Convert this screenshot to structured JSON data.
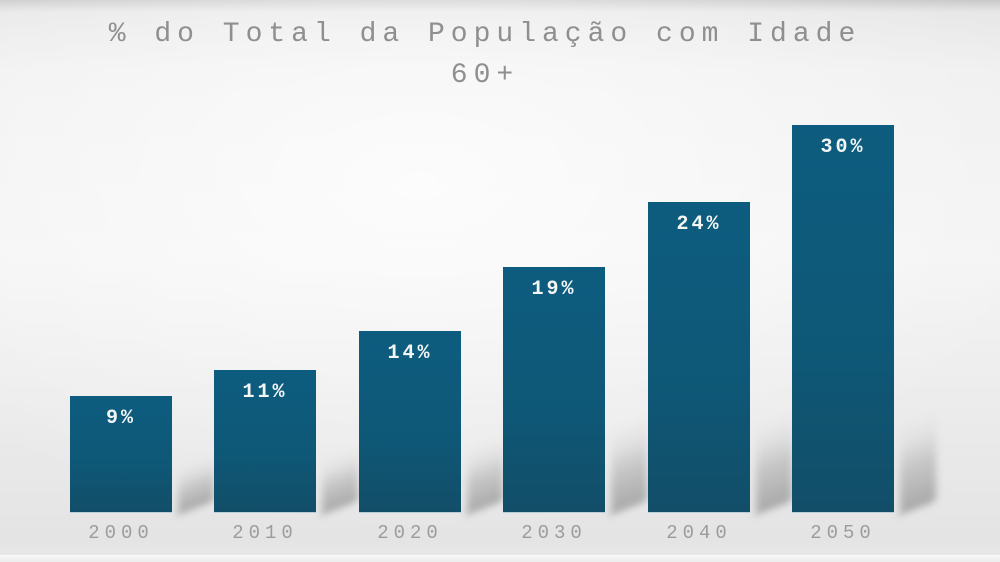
{
  "chart_data": {
    "type": "bar",
    "title": "% do Total da População com Idade 60+",
    "title_lines": [
      "% do Total da População com Idade",
      "60+"
    ],
    "categories": [
      "2000",
      "2010",
      "2020",
      "2030",
      "2040",
      "2050"
    ],
    "values": [
      9,
      11,
      14,
      19,
      24,
      30
    ],
    "value_labels": [
      "9%",
      "11%",
      "14%",
      "19%",
      "24%",
      "30%"
    ],
    "xlabel": "",
    "ylabel": "",
    "ylim": [
      0,
      32
    ],
    "grid": false,
    "legend": null,
    "colors": {
      "bar": "#0e5877",
      "bar_value_label": "#f4f6f6",
      "title_text": "#8f8f8f",
      "axis_text": "#9c9c9c",
      "background": "#ededed",
      "shadow": "#9a9a9a"
    }
  }
}
